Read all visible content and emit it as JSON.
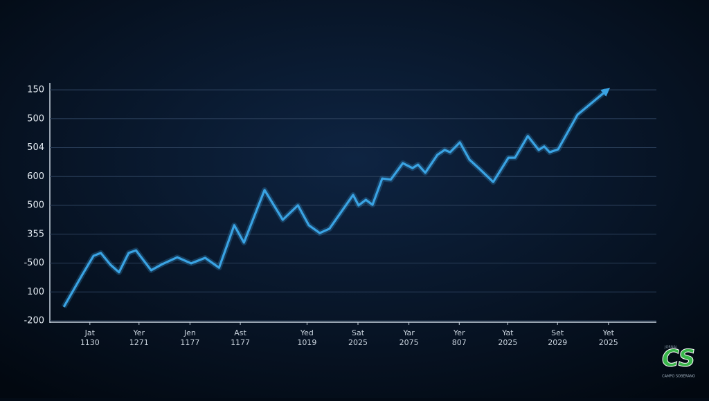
{
  "chart_data": {
    "type": "line",
    "categories": [
      [
        "Jat",
        "1130"
      ],
      [
        "Yer",
        "1271"
      ],
      [
        "Jen",
        "1177"
      ],
      [
        "Ast",
        "1177"
      ],
      [
        "Yed",
        "1019"
      ],
      [
        "Sat",
        "2025"
      ],
      [
        "Yar",
        "2075"
      ],
      [
        "Yer",
        "807"
      ],
      [
        "Yat",
        "2025"
      ],
      [
        "Set",
        "2029"
      ],
      [
        "Yet",
        "2025"
      ]
    ],
    "xlim": [
      0,
      100
    ],
    "xticks": [
      6.6,
      14.7,
      23.1,
      31.4,
      42.4,
      50.8,
      59.2,
      67.5,
      75.5,
      83.7,
      92.1
    ],
    "ylim": [
      0,
      8
    ],
    "yticks": [
      {
        "value": 0,
        "label": "-200"
      },
      {
        "value": 1,
        "label": "100"
      },
      {
        "value": 2,
        "label": "-500"
      },
      {
        "value": 3,
        "label": "355"
      },
      {
        "value": 4,
        "label": "500"
      },
      {
        "value": 5,
        "label": "600"
      },
      {
        "value": 6,
        "label": "504"
      },
      {
        "value": 7,
        "label": "500"
      },
      {
        "value": 8,
        "label": "150"
      }
    ],
    "grid": true,
    "series": [
      {
        "color": "#3aa3e3",
        "x": [
          2.3,
          5.3,
          7.2,
          8.4,
          10.0,
          11.4,
          13.0,
          14.2,
          16.7,
          18.5,
          21.0,
          23.3,
          25.6,
          27.9,
          30.4,
          32.0,
          35.4,
          38.4,
          40.9,
          42.7,
          44.5,
          46.1,
          50.0,
          50.9,
          52.1,
          53.2,
          54.8,
          56.2,
          58.2,
          59.8,
          60.7,
          61.9,
          63.9,
          65.1,
          66.0,
          67.6,
          69.2,
          70.8,
          73.1,
          75.6,
          76.7,
          78.8,
          80.6,
          81.5,
          82.4,
          83.8,
          87.0,
          91.8
        ],
        "values": [
          0.48,
          1.58,
          2.25,
          2.35,
          1.94,
          1.68,
          2.35,
          2.44,
          1.75,
          1.96,
          2.2,
          1.99,
          2.18,
          1.84,
          3.31,
          2.71,
          4.53,
          3.5,
          4.0,
          3.31,
          3.04,
          3.19,
          4.36,
          4.0,
          4.19,
          4.02,
          4.93,
          4.89,
          5.46,
          5.29,
          5.41,
          5.13,
          5.75,
          5.92,
          5.84,
          6.18,
          5.58,
          5.27,
          4.81,
          5.65,
          5.65,
          6.4,
          5.92,
          6.04,
          5.84,
          5.94,
          7.14,
          7.98
        ]
      }
    ]
  },
  "logo": {
    "top": "JORNAL",
    "mark": "CS",
    "bottom": "CAMPO SOBERANO"
  }
}
